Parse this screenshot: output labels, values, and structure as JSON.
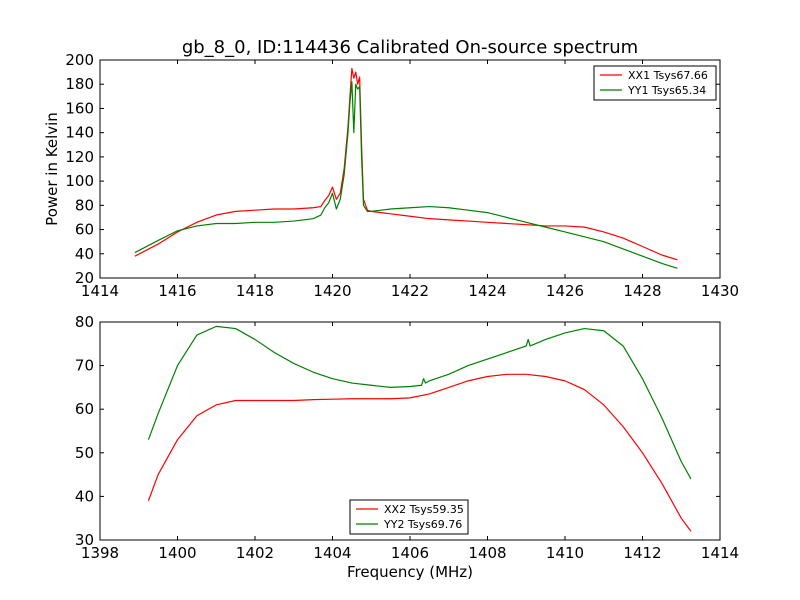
{
  "figure_title": "gb_8_0, ID:114436 Calibrated On-source spectrum",
  "chart_data": [
    {
      "type": "line",
      "title": "gb_8_0, ID:114436 Calibrated On-source spectrum",
      "xlabel": "",
      "ylabel": "Power in Kelvin",
      "xlim": [
        1414,
        1430
      ],
      "ylim": [
        20,
        200
      ],
      "xticks": [
        "1414",
        "1416",
        "1418",
        "1420",
        "1422",
        "1424",
        "1426",
        "1428",
        "1430"
      ],
      "yticks": [
        "20",
        "40",
        "60",
        "80",
        "100",
        "120",
        "140",
        "160",
        "180",
        "200"
      ],
      "grid": false,
      "legend_position": "top-right",
      "series": [
        {
          "name": "XX1 Tsys67.66",
          "color": "#ff0000",
          "x": [
            1414.9,
            1415.5,
            1416.0,
            1416.5,
            1417.0,
            1417.5,
            1418.0,
            1418.5,
            1419.0,
            1419.5,
            1419.7,
            1419.8,
            1419.9,
            1420.0,
            1420.1,
            1420.2,
            1420.3,
            1420.4,
            1420.45,
            1420.5,
            1420.55,
            1420.6,
            1420.65,
            1420.7,
            1420.75,
            1420.8,
            1420.9,
            1421.0,
            1421.5,
            1422.0,
            1422.5,
            1423.0,
            1423.5,
            1424.0,
            1424.5,
            1425.0,
            1425.5,
            1426.0,
            1426.5,
            1427.0,
            1427.5,
            1428.0,
            1428.5,
            1428.9
          ],
          "y": [
            38,
            48,
            58,
            66,
            72,
            75,
            76,
            77,
            77,
            78,
            79,
            84,
            88,
            95,
            85,
            90,
            110,
            145,
            170,
            193,
            185,
            190,
            180,
            186,
            130,
            85,
            76,
            75,
            73,
            71,
            69,
            68,
            67,
            66,
            65,
            64,
            63,
            63,
            62,
            58,
            53,
            46,
            39,
            35
          ]
        },
        {
          "name": "YY1 Tsys65.34",
          "color": "#008000",
          "x": [
            1414.9,
            1415.5,
            1416.0,
            1416.5,
            1417.0,
            1417.5,
            1418.0,
            1418.5,
            1419.0,
            1419.5,
            1419.7,
            1419.8,
            1419.9,
            1420.0,
            1420.1,
            1420.2,
            1420.3,
            1420.4,
            1420.45,
            1420.5,
            1420.55,
            1420.6,
            1420.65,
            1420.7,
            1420.75,
            1420.8,
            1420.9,
            1421.0,
            1421.5,
            1422.0,
            1422.5,
            1423.0,
            1423.5,
            1424.0,
            1424.5,
            1425.0,
            1425.5,
            1426.0,
            1426.5,
            1427.0,
            1427.5,
            1428.0,
            1428.5,
            1428.9
          ],
          "y": [
            41,
            51,
            59,
            63,
            65,
            65,
            66,
            66,
            67,
            69,
            72,
            78,
            82,
            90,
            77,
            85,
            105,
            140,
            165,
            182,
            140,
            180,
            176,
            178,
            120,
            80,
            75,
            75,
            77,
            78,
            79,
            78,
            76,
            74,
            70,
            66,
            62,
            58,
            54,
            50,
            44,
            38,
            32,
            28
          ]
        }
      ]
    },
    {
      "type": "line",
      "title": "",
      "xlabel": "Frequency (MHz)",
      "ylabel": "",
      "xlim": [
        1398,
        1414
      ],
      "ylim": [
        30,
        80
      ],
      "xticks": [
        "1398",
        "1400",
        "1402",
        "1404",
        "1406",
        "1408",
        "1410",
        "1412",
        "1414"
      ],
      "yticks": [
        "30",
        "40",
        "50",
        "60",
        "70",
        "80"
      ],
      "grid": false,
      "legend_position": "bottom-center",
      "series": [
        {
          "name": "XX2 Tsys59.35",
          "color": "#ff0000",
          "x": [
            1399.25,
            1399.5,
            1400.0,
            1400.5,
            1401.0,
            1401.5,
            1402.0,
            1402.5,
            1403.0,
            1403.5,
            1404.0,
            1404.5,
            1405.0,
            1405.5,
            1406.0,
            1406.5,
            1407.0,
            1407.5,
            1408.0,
            1408.5,
            1409.0,
            1409.5,
            1410.0,
            1410.5,
            1411.0,
            1411.5,
            1412.0,
            1412.5,
            1413.0,
            1413.25
          ],
          "y": [
            39,
            45,
            53,
            58.5,
            61,
            62,
            62,
            62,
            62,
            62.2,
            62.3,
            62.4,
            62.4,
            62.4,
            62.6,
            63.5,
            65,
            66.5,
            67.5,
            68,
            68,
            67.5,
            66.5,
            64.5,
            61,
            56,
            50,
            43,
            35,
            32
          ]
        },
        {
          "name": "YY2 Tsys69.76",
          "color": "#008000",
          "x": [
            1399.25,
            1399.5,
            1400.0,
            1400.5,
            1401.0,
            1401.5,
            1402.0,
            1402.5,
            1403.0,
            1403.5,
            1404.0,
            1404.5,
            1405.0,
            1405.5,
            1406.0,
            1406.3,
            1406.35,
            1406.4,
            1406.5,
            1407.0,
            1407.5,
            1408.0,
            1408.5,
            1409.0,
            1409.05,
            1409.1,
            1409.5,
            1410.0,
            1410.5,
            1411.0,
            1411.5,
            1412.0,
            1412.5,
            1413.0,
            1413.25
          ],
          "y": [
            53,
            59,
            70,
            77,
            79,
            78.5,
            76,
            73,
            70.5,
            68.5,
            67,
            66,
            65.5,
            65,
            65.2,
            65.5,
            67,
            66,
            66.5,
            68,
            70,
            71.5,
            73,
            74.5,
            76,
            74.5,
            76,
            77.5,
            78.5,
            78,
            74.5,
            67,
            58,
            48,
            44
          ]
        }
      ]
    }
  ]
}
